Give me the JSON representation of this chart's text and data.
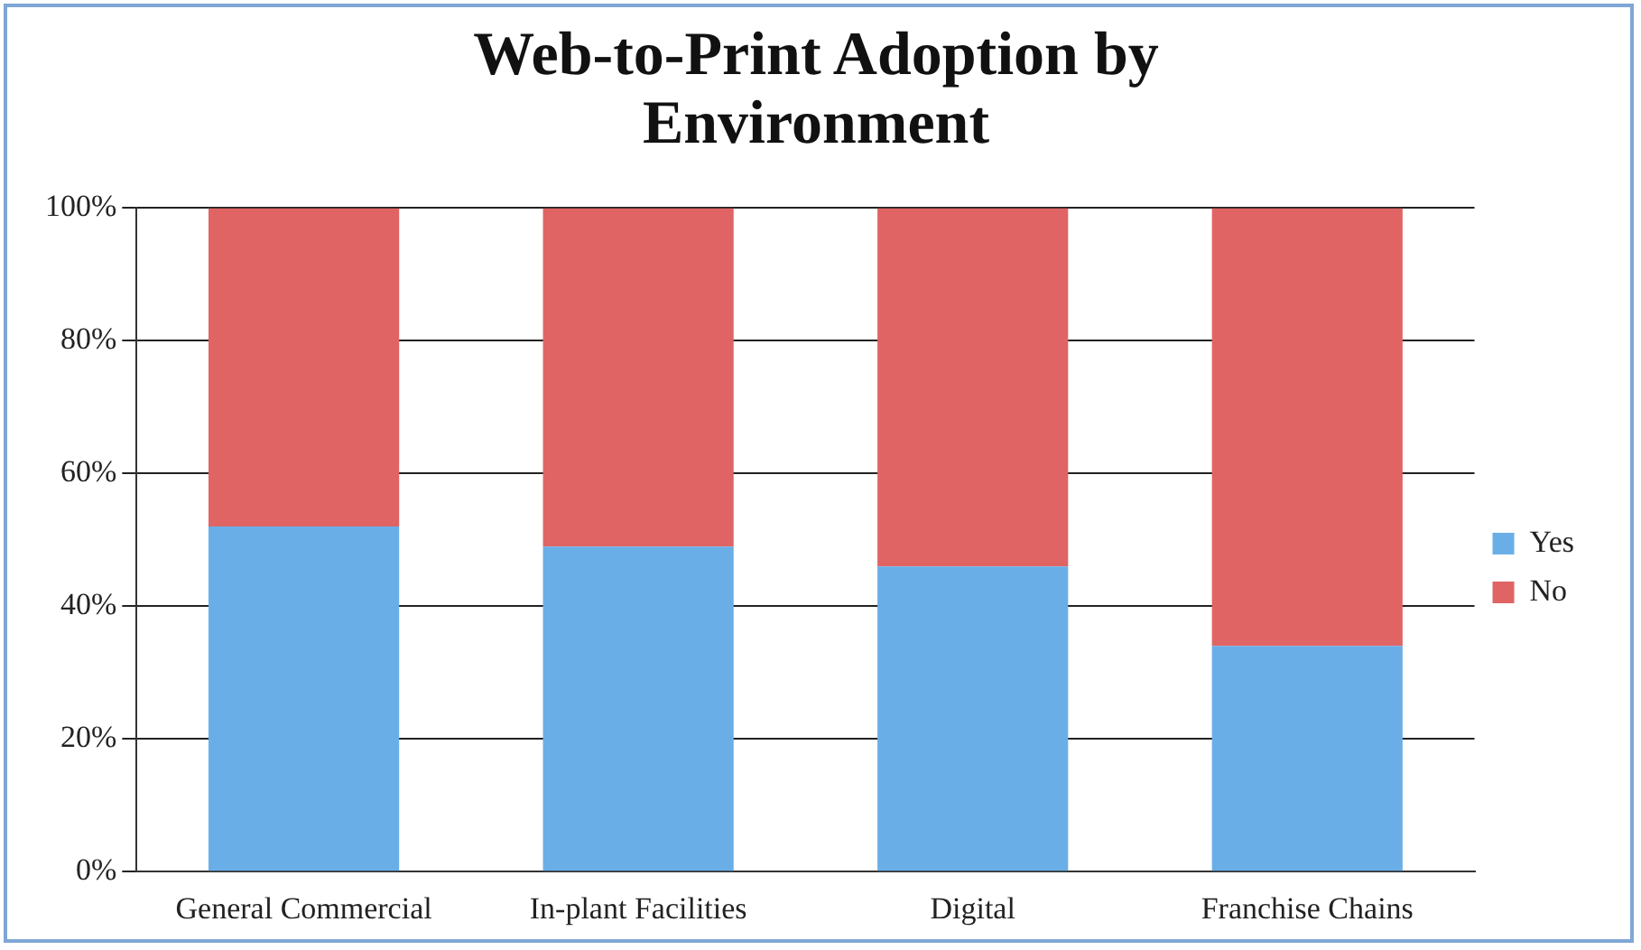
{
  "chart_data": {
    "type": "bar",
    "title": "Web-to-Print Adoption by Environment",
    "categories": [
      "General Commercial",
      "In-plant Facilities",
      "Digital",
      "Franchise Chains"
    ],
    "stacked": true,
    "series": [
      {
        "name": "Yes",
        "color": "#6aaee8",
        "values": [
          52,
          49,
          46,
          34
        ]
      },
      {
        "name": "No",
        "color": "#e06464",
        "values": [
          48,
          51,
          54,
          66
        ]
      }
    ],
    "ylim": [
      0,
      100
    ],
    "yticks": [
      {
        "value": 0,
        "label": "0%"
      },
      {
        "value": 20,
        "label": "20%"
      },
      {
        "value": 40,
        "label": "40%"
      },
      {
        "value": 60,
        "label": "60%"
      },
      {
        "value": 80,
        "label": "80%"
      },
      {
        "value": 100,
        "label": "100%"
      }
    ],
    "grid": "y",
    "legend": "right"
  }
}
